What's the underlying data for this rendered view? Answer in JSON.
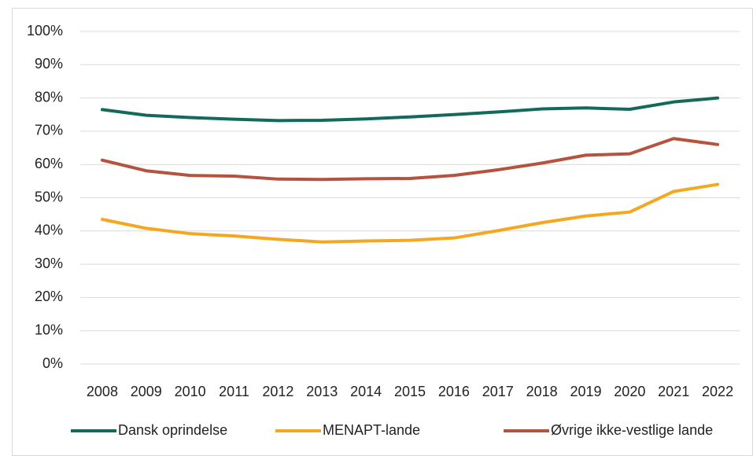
{
  "chart_data": {
    "type": "line",
    "categories": [
      "2008",
      "2009",
      "2010",
      "2011",
      "2012",
      "2013",
      "2014",
      "2015",
      "2016",
      "2017",
      "2018",
      "2019",
      "2020",
      "2021",
      "2022"
    ],
    "series": [
      {
        "name": "Dansk oprindelse",
        "color": "#13695a",
        "values": [
          76.5,
          74.8,
          74.1,
          73.6,
          73.2,
          73.3,
          73.7,
          74.3,
          75.0,
          75.8,
          76.7,
          77.0,
          76.6,
          78.8,
          80.0
        ]
      },
      {
        "name": "MENAPT-lande",
        "color": "#f5a81f",
        "values": [
          43.5,
          40.8,
          39.2,
          38.5,
          37.5,
          36.7,
          37.0,
          37.2,
          37.9,
          40.1,
          42.5,
          44.5,
          45.7,
          51.9,
          54.0
        ]
      },
      {
        "name": "Øvrige ikke-vestlige lande",
        "color": "#b4533f",
        "values": [
          61.3,
          58.1,
          56.7,
          56.5,
          55.6,
          55.5,
          55.7,
          55.8,
          56.7,
          58.4,
          60.4,
          62.8,
          63.2,
          67.8,
          66.0
        ]
      }
    ],
    "ylim": [
      0,
      100
    ],
    "yticks": [
      {
        "value": 0,
        "label": "0%"
      },
      {
        "value": 10,
        "label": "10%"
      },
      {
        "value": 20,
        "label": "20%"
      },
      {
        "value": 30,
        "label": "30%"
      },
      {
        "value": 40,
        "label": "40%"
      },
      {
        "value": 50,
        "label": "50%"
      },
      {
        "value": 60,
        "label": "60%"
      },
      {
        "value": 70,
        "label": "70%"
      },
      {
        "value": 80,
        "label": "80%"
      },
      {
        "value": 90,
        "label": "90%"
      },
      {
        "value": 100,
        "label": "100%"
      }
    ],
    "grid": true,
    "legend": "bottom"
  }
}
